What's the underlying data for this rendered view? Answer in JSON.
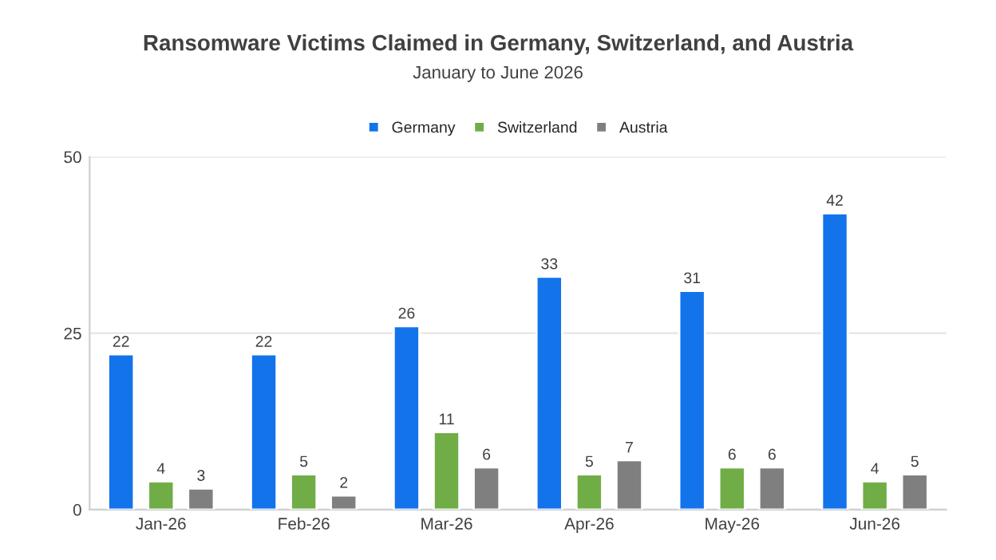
{
  "chart_data": {
    "type": "bar",
    "title": "Ransomware Victims Claimed in Germany, Switzerland, and Austria",
    "subtitle": "January to June 2026",
    "categories": [
      "Jan-26",
      "Feb-26",
      "Mar-26",
      "Apr-26",
      "May-26",
      "Jun-26"
    ],
    "series": [
      {
        "name": "Germany",
        "color": "#1273eb",
        "values": [
          22,
          22,
          26,
          33,
          31,
          42
        ]
      },
      {
        "name": "Switzerland",
        "color": "#70ad47",
        "values": [
          4,
          5,
          11,
          5,
          6,
          4
        ]
      },
      {
        "name": "Austria",
        "color": "#7f7f7f",
        "values": [
          3,
          2,
          6,
          7,
          6,
          5
        ]
      }
    ],
    "ylim": [
      0,
      50
    ],
    "yticks": [
      0,
      25,
      50
    ],
    "grid": "y",
    "legend": "top",
    "data_labels": true
  }
}
